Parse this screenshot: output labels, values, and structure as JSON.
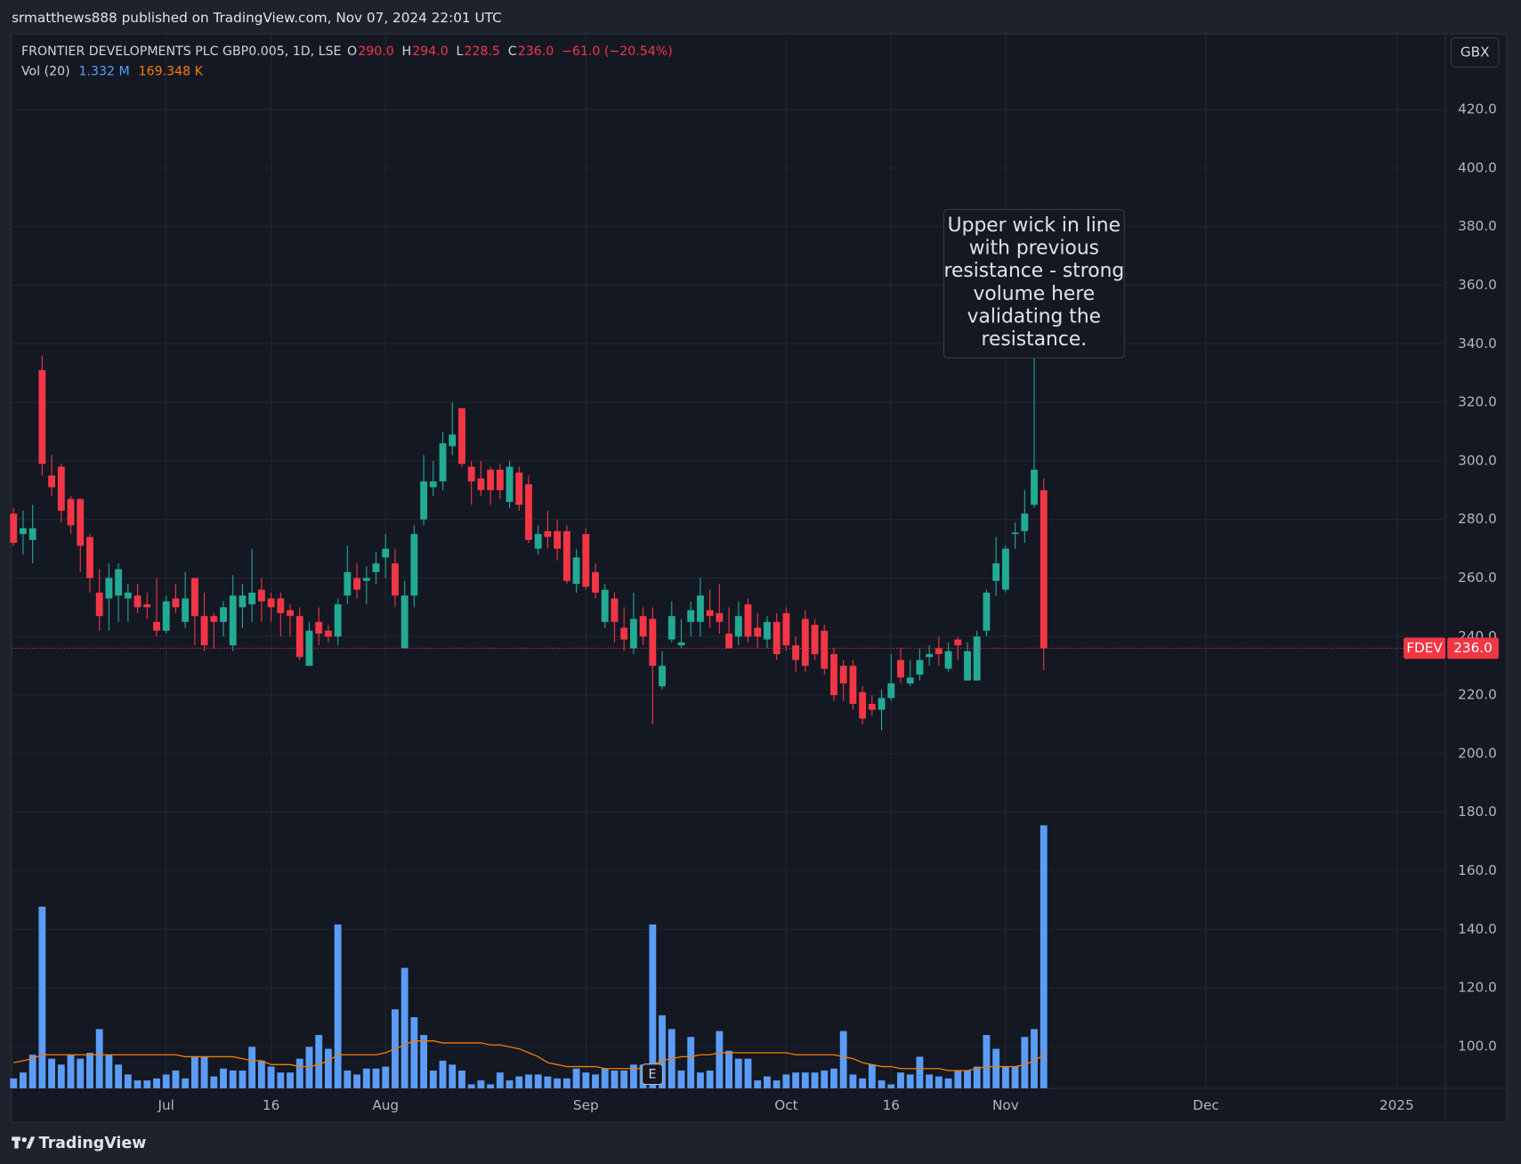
{
  "publisher": "srmatthews888 published on TradingView.com, Nov 07, 2024 22:01 UTC",
  "brand": "TradingView",
  "chart_data": {
    "type": "candlestick",
    "header": {
      "symbol": "FRONTIER DEVELOPMENTS PLC GBP0.005, 1D, LSE",
      "ohlc": [
        {
          "key": "O",
          "value": "290.0"
        },
        {
          "key": "H",
          "value": "294.0"
        },
        {
          "key": "L",
          "value": "228.5"
        },
        {
          "key": "C",
          "value": "236.0"
        }
      ],
      "change": "−61.0 (−20.54%)",
      "volume_name": "Vol (20)",
      "volume_value": "1.332 M",
      "volume_ma_value": "169.348 K"
    },
    "currency": "GBX",
    "price_label": {
      "symbol": "FDEV",
      "value": "236.0"
    },
    "annotation": [
      "Upper wick in line",
      "with previous",
      "resistance - strong",
      "volume here",
      "validating the",
      "resistance."
    ],
    "earnings_marker": "E",
    "up_color": "#22ab94",
    "down_color": "#f23645",
    "open": [
      282,
      275,
      273,
      331,
      295,
      298,
      287,
      287,
      274,
      255,
      253,
      254,
      253,
      254,
      251,
      245,
      242,
      253,
      245,
      260,
      247,
      247,
      245,
      237,
      250,
      251,
      256,
      253,
      253,
      249,
      247,
      230,
      245,
      242,
      240,
      254,
      260,
      259,
      262,
      267,
      265,
      236,
      254,
      280,
      291,
      293,
      305,
      318,
      298,
      294,
      297,
      297,
      286,
      296,
      292,
      270,
      276,
      276,
      276,
      258,
      275,
      262,
      245,
      253,
      243,
      236,
      247,
      246,
      223,
      239,
      237,
      245,
      245,
      249,
      248,
      241,
      240,
      251,
      243,
      239,
      245,
      248,
      237,
      246,
      244,
      242,
      234,
      230,
      230,
      221,
      217,
      215,
      219,
      232,
      224,
      227,
      233,
      236,
      229,
      239,
      225,
      225,
      242,
      259,
      256,
      275,
      276,
      285,
      290
    ],
    "high": [
      284,
      283,
      285,
      336,
      302,
      299,
      288,
      287,
      275,
      263,
      265,
      265,
      258,
      258,
      255,
      260,
      254,
      258,
      262,
      260,
      255,
      248,
      252,
      261,
      258,
      270,
      260,
      255,
      255,
      251,
      250,
      245,
      250,
      244,
      253,
      271,
      265,
      264,
      269,
      275,
      270,
      259,
      278,
      302,
      300,
      310,
      320,
      318,
      300,
      300,
      298,
      299,
      300,
      298,
      295,
      278,
      283,
      280,
      278,
      270,
      277,
      265,
      258,
      255,
      250,
      255,
      250,
      250,
      235,
      252,
      246,
      252,
      260,
      256,
      258,
      250,
      252,
      253,
      248,
      247,
      248,
      250,
      240,
      249,
      246,
      244,
      236,
      232,
      232,
      223,
      220,
      222,
      234,
      236,
      232,
      236,
      237,
      240,
      238,
      240,
      238,
      242,
      256,
      274,
      271,
      279,
      290,
      336,
      294
    ],
    "low": [
      271,
      268,
      265,
      295,
      288,
      279,
      275,
      262,
      255,
      242,
      242,
      245,
      245,
      248,
      246,
      240,
      241,
      248,
      243,
      237,
      235,
      236,
      240,
      235,
      243,
      245,
      245,
      245,
      240,
      240,
      232,
      230,
      237,
      238,
      237,
      251,
      253,
      251,
      258,
      260,
      250,
      236,
      250,
      278,
      288,
      290,
      302,
      298,
      285,
      288,
      285,
      287,
      284,
      283,
      272,
      268,
      270,
      266,
      258,
      255,
      256,
      253,
      243,
      238,
      235,
      234,
      237,
      210,
      222,
      238,
      236,
      240,
      240,
      243,
      241,
      236,
      237,
      238,
      236,
      236,
      232,
      235,
      228,
      228,
      232,
      227,
      218,
      218,
      215,
      210,
      213,
      208,
      218,
      224,
      223,
      225,
      230,
      230,
      228,
      232,
      225,
      225,
      240,
      254,
      255,
      270,
      272,
      284,
      228.5
    ],
    "close": [
      272,
      277,
      277,
      299,
      291,
      283,
      278,
      271,
      260,
      247,
      260,
      263,
      255,
      250,
      250,
      242,
      252,
      250,
      253,
      247,
      237,
      245,
      250,
      254,
      254,
      255,
      252,
      250,
      248,
      247,
      233,
      242,
      241,
      240,
      251,
      262,
      256,
      260,
      265,
      270,
      254,
      254,
      275,
      293,
      293,
      306,
      309,
      299,
      293,
      290,
      290,
      290,
      298,
      285,
      273,
      275,
      274,
      270,
      259,
      267,
      257,
      255,
      256,
      245,
      239,
      246,
      240,
      230,
      230,
      247,
      238,
      249,
      254,
      247,
      245,
      236,
      247,
      240,
      240,
      245,
      234,
      237,
      232,
      230,
      234,
      229,
      220,
      224,
      217,
      212,
      215,
      219,
      224,
      226,
      226,
      232,
      234,
      234,
      235,
      237,
      235,
      240,
      255,
      265,
      270,
      275.5,
      282,
      297,
      236
    ],
    "volume": {
      "color": "#5b9cf6",
      "ylim": [
        0,
        5.34
      ],
      "values": [
        0.05,
        0.08,
        0.17,
        0.92,
        0.15,
        0.12,
        0.17,
        0.15,
        0.18,
        0.3,
        0.17,
        0.12,
        0.07,
        0.04,
        0.04,
        0.05,
        0.07,
        0.09,
        0.05,
        0.16,
        0.16,
        0.06,
        0.1,
        0.09,
        0.09,
        0.21,
        0.14,
        0.11,
        0.08,
        0.08,
        0.15,
        0.21,
        0.27,
        0.2,
        0.83,
        0.09,
        0.07,
        0.1,
        0.1,
        0.11,
        0.4,
        0.61,
        0.36,
        0.27,
        0.09,
        0.14,
        0.12,
        0.09,
        0.02,
        0.04,
        0.02,
        0.08,
        0.04,
        0.06,
        0.07,
        0.07,
        0.06,
        0.05,
        0.05,
        0.1,
        0.08,
        0.07,
        0.1,
        0.09,
        0.09,
        0.12,
        0.12,
        0.83,
        0.37,
        0.3,
        0.09,
        0.26,
        0.08,
        0.09,
        0.29,
        0.19,
        0.15,
        0.15,
        0.04,
        0.06,
        0.04,
        0.07,
        0.08,
        0.08,
        0.08,
        0.09,
        0.1,
        0.29,
        0.07,
        0.05,
        0.12,
        0.04,
        0.02,
        0.08,
        0.07,
        0.16,
        0.07,
        0.06,
        0.05,
        0.09,
        0.09,
        0.11,
        0.27,
        0.2,
        0.11,
        0.11,
        0.26,
        0.3,
        1.332
      ],
      "ma_color": "#f57c00",
      "ma": [
        0.13,
        0.14,
        0.15,
        0.17,
        0.17,
        0.17,
        0.17,
        0.17,
        0.17,
        0.17,
        0.17,
        0.17,
        0.17,
        0.17,
        0.17,
        0.17,
        0.17,
        0.17,
        0.16,
        0.16,
        0.16,
        0.16,
        0.16,
        0.16,
        0.15,
        0.14,
        0.14,
        0.12,
        0.12,
        0.12,
        0.11,
        0.11,
        0.12,
        0.14,
        0.17,
        0.17,
        0.17,
        0.17,
        0.17,
        0.18,
        0.2,
        0.22,
        0.24,
        0.24,
        0.24,
        0.23,
        0.23,
        0.23,
        0.23,
        0.23,
        0.22,
        0.22,
        0.21,
        0.2,
        0.18,
        0.16,
        0.13,
        0.12,
        0.11,
        0.11,
        0.11,
        0.11,
        0.1,
        0.1,
        0.1,
        0.1,
        0.1,
        0.12,
        0.14,
        0.15,
        0.16,
        0.16,
        0.17,
        0.17,
        0.18,
        0.18,
        0.18,
        0.18,
        0.18,
        0.18,
        0.18,
        0.18,
        0.17,
        0.17,
        0.17,
        0.17,
        0.17,
        0.16,
        0.15,
        0.13,
        0.12,
        0.11,
        0.11,
        0.1,
        0.1,
        0.1,
        0.1,
        0.1,
        0.09,
        0.09,
        0.09,
        0.1,
        0.11,
        0.11,
        0.11,
        0.11,
        0.12,
        0.14,
        0.169
      ]
    },
    "xlim": [
      -0.2,
      150.1
    ],
    "xticks": [
      {
        "value": 16,
        "label": "Jul"
      },
      {
        "value": 27,
        "label": "16"
      },
      {
        "value": 39,
        "label": "Aug"
      },
      {
        "value": 60,
        "label": "Sep"
      },
      {
        "value": 81,
        "label": "Oct"
      },
      {
        "value": 92,
        "label": "16"
      },
      {
        "value": 104,
        "label": "Nov"
      },
      {
        "value": 125,
        "label": "Dec"
      },
      {
        "value": 145,
        "label": "2025"
      }
    ],
    "ylim": [
      85.7,
      445.8
    ],
    "yticks": [
      {
        "value": 100,
        "label": "100.0"
      },
      {
        "value": 120,
        "label": "120.0"
      },
      {
        "value": 140,
        "label": "140.0"
      },
      {
        "value": 160,
        "label": "160.0"
      },
      {
        "value": 180,
        "label": "180.0"
      },
      {
        "value": 200,
        "label": "200.0"
      },
      {
        "value": 220,
        "label": "220.0"
      },
      {
        "value": 240,
        "label": "240.0"
      },
      {
        "value": 260,
        "label": "260.0"
      },
      {
        "value": 280,
        "label": "280.0"
      },
      {
        "value": 300,
        "label": "300.0"
      },
      {
        "value": 320,
        "label": "320.0"
      },
      {
        "value": 340,
        "label": "340.0"
      },
      {
        "value": 360,
        "label": "360.0"
      },
      {
        "value": 380,
        "label": "380.0"
      },
      {
        "value": 400,
        "label": "400.0"
      },
      {
        "value": 420,
        "label": "420.0"
      }
    ],
    "grid": true
  }
}
